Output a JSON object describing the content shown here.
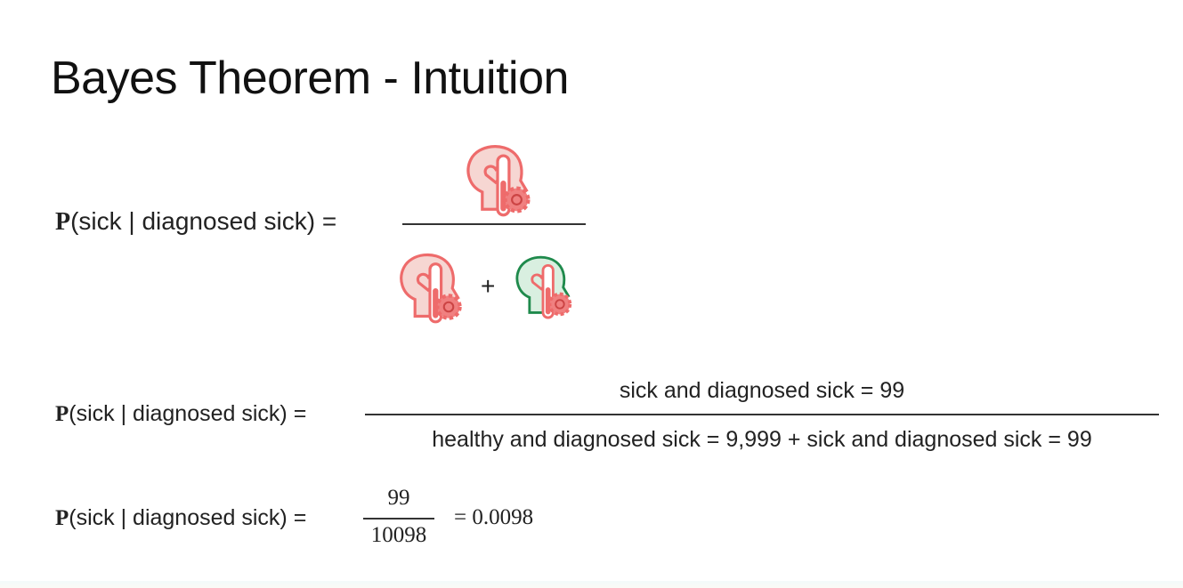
{
  "slide": {
    "title": "Bayes Theorem - Intuition",
    "equation1": {
      "lhs_p": "P",
      "lhs_rest": "(sick | diagnosed sick) =",
      "numerator_icon": "sick-patient-icon",
      "denominator_icons": [
        "sick-patient-icon",
        "healthy-patient-icon"
      ],
      "plus": "+"
    },
    "equation2": {
      "lhs_p": "P",
      "lhs_rest": "(sick | diagnosed sick) =",
      "numerator": "sick and diagnosed sick = 99",
      "denominator": "healthy and diagnosed sick = 9,999 + sick and diagnosed sick = 99"
    },
    "equation3": {
      "lhs_p": "P",
      "lhs_rest": "(sick | diagnosed sick) =",
      "numerator": "99",
      "denominator": "10098",
      "result": "= 0.0098"
    },
    "colors": {
      "sick": "#ee6b6b",
      "healthy": "#1f8a4c"
    }
  }
}
